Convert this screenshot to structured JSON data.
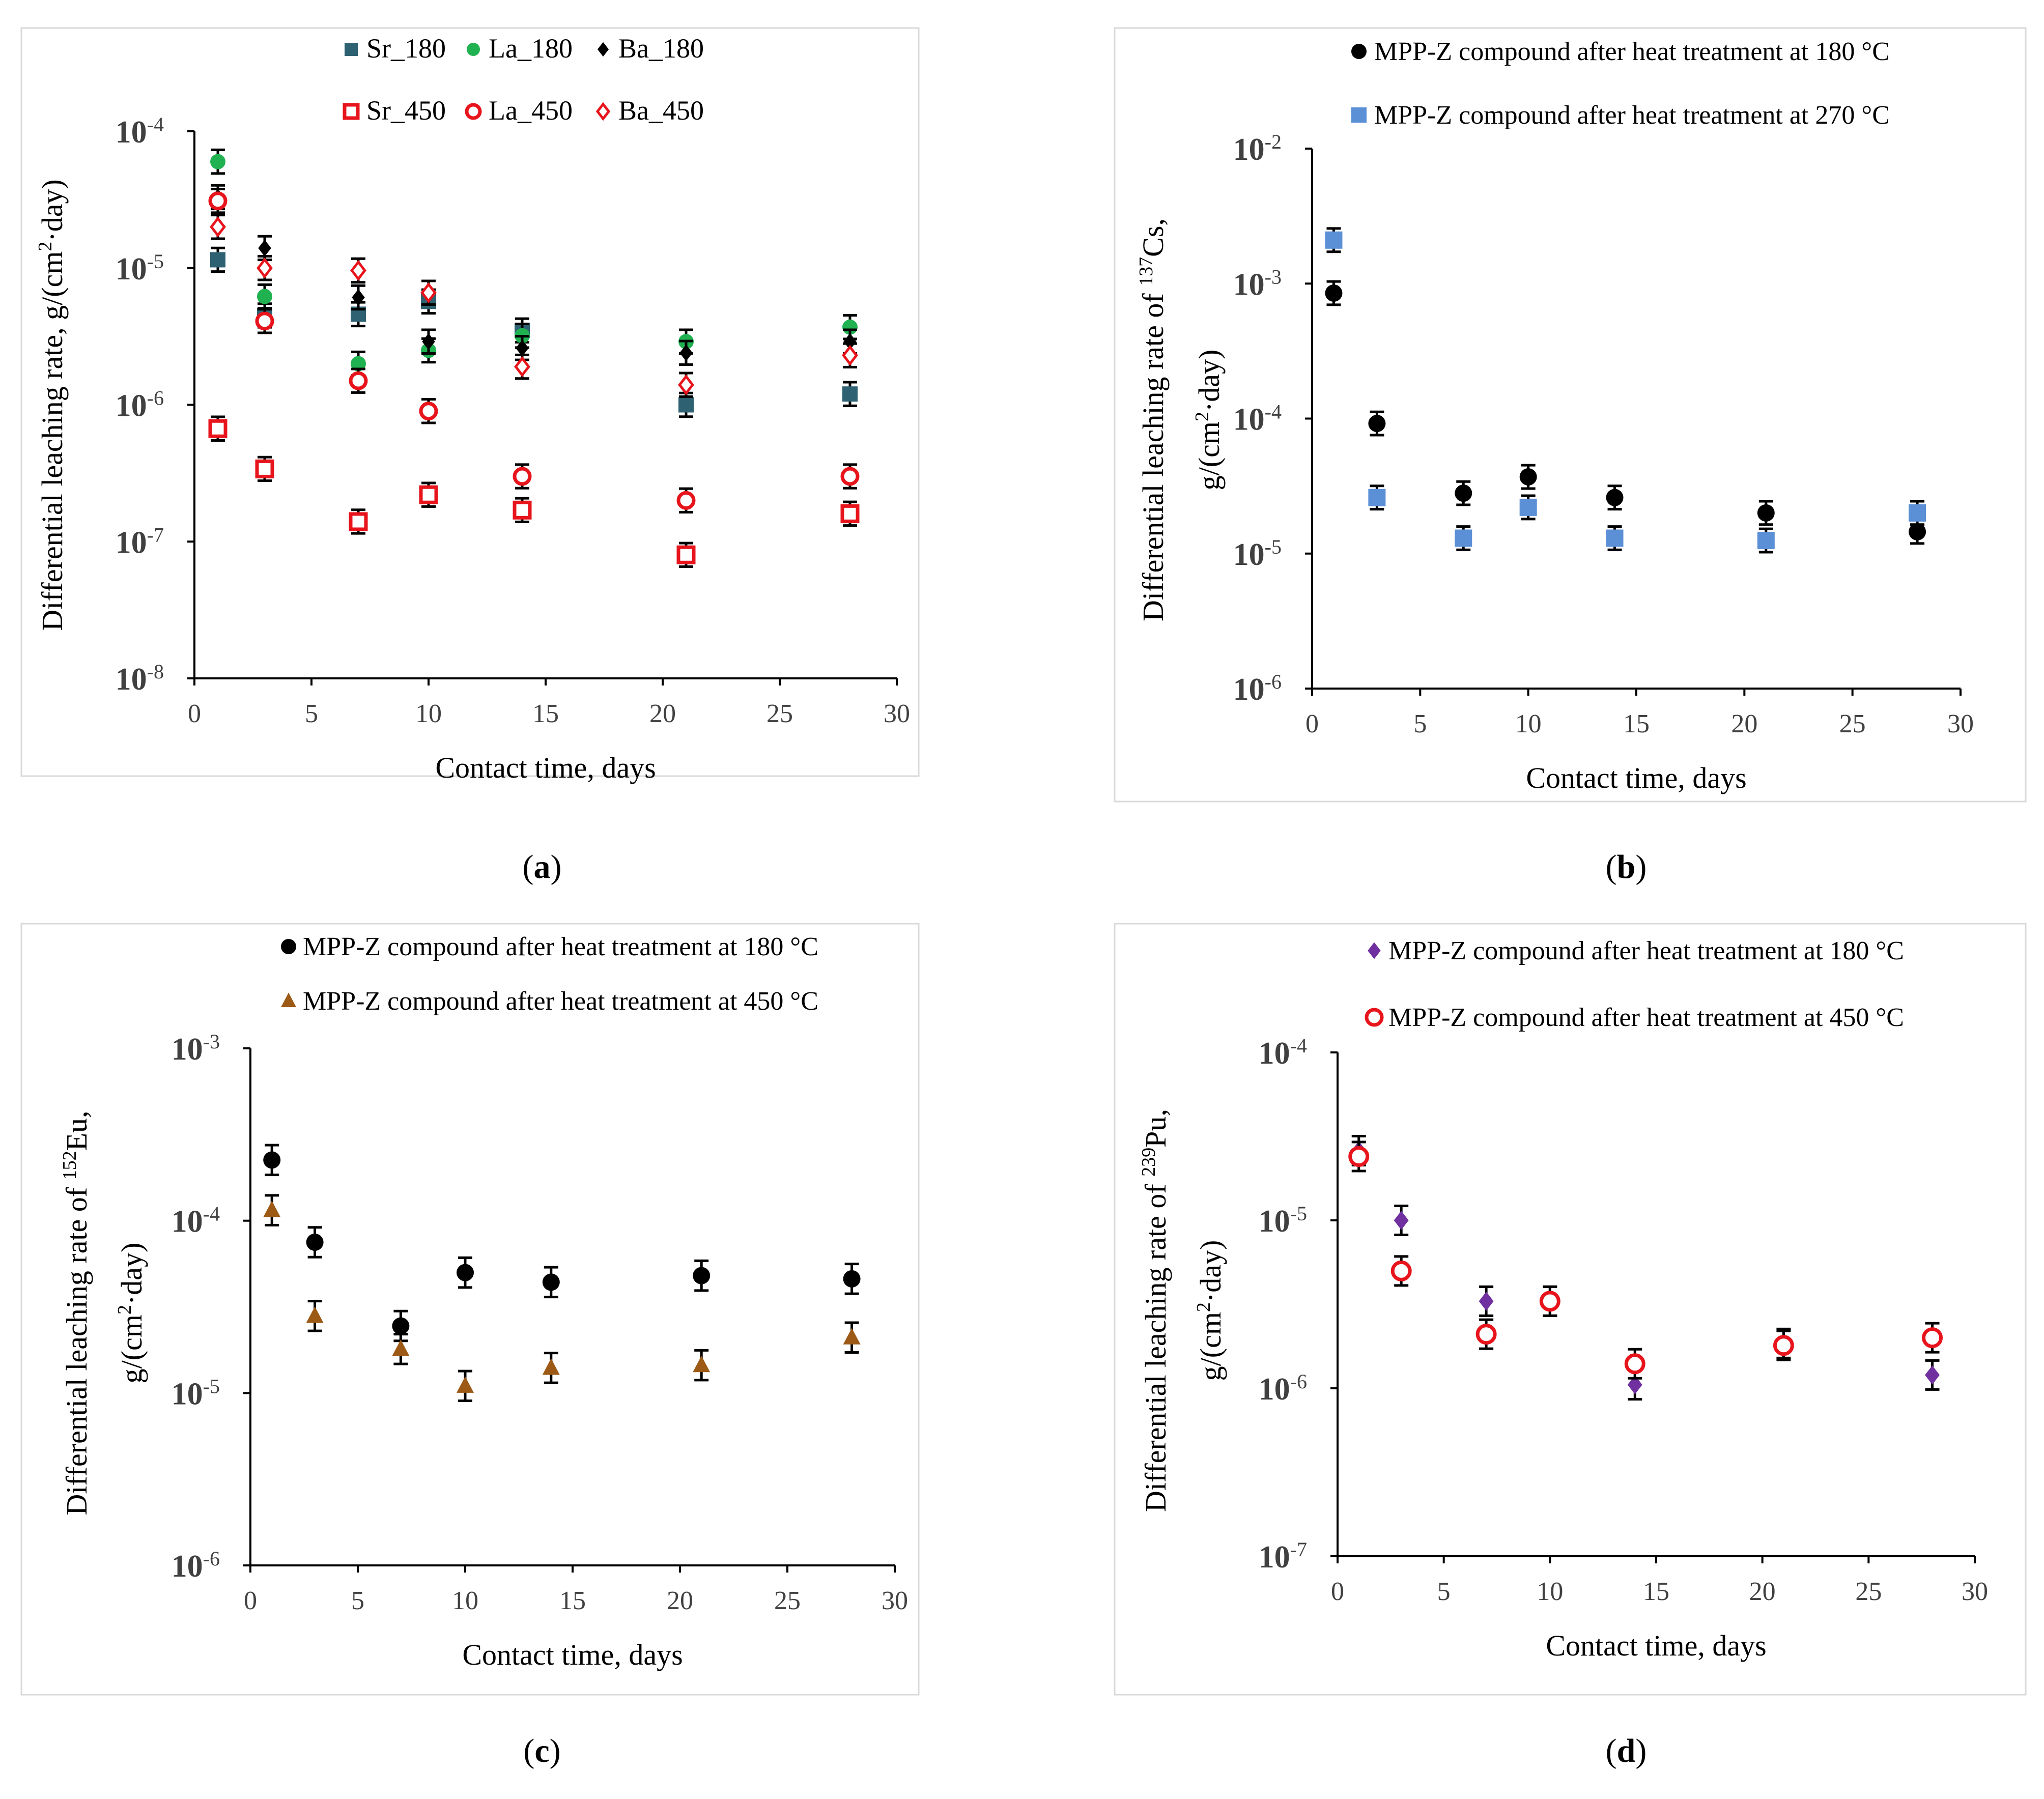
{
  "chart_data": [
    {
      "id": "a",
      "type": "scatter",
      "caption_letter": "a",
      "xlabel": "Contact time, days",
      "ylabel": "Differential leaching rate, g/(cm²·day)",
      "xlim": [
        0,
        30
      ],
      "xticks": [
        "0",
        "5",
        "10",
        "15",
        "20",
        "25",
        "30"
      ],
      "ylim_log10": [
        -8,
        -4
      ],
      "yticks": [
        {
          "base": "10",
          "exp": "-8"
        },
        {
          "base": "10",
          "exp": "-7"
        },
        {
          "base": "10",
          "exp": "-6"
        },
        {
          "base": "10",
          "exp": "-5"
        },
        {
          "base": "10",
          "exp": "-4"
        }
      ],
      "legend_position": "top",
      "series": [
        {
          "name": "Sr_180",
          "marker": "square-filled",
          "color": "#2e6272",
          "x": [
            1,
            3,
            7,
            10,
            14,
            21,
            28
          ],
          "y": [
            1.15e-05,
            4.5e-06,
            4.6e-06,
            5.7e-06,
            3.5e-06,
            1e-06,
            1.2e-06
          ]
        },
        {
          "name": "La_180",
          "marker": "circle-filled",
          "color": "#20b250",
          "x": [
            1,
            3,
            7,
            10,
            14,
            21,
            28
          ],
          "y": [
            6e-05,
            6.2e-06,
            2e-06,
            2.5e-06,
            3.2e-06,
            2.9e-06,
            3.7e-06
          ]
        },
        {
          "name": "Ba_180",
          "marker": "diamond-filled",
          "color": "#000000",
          "x": [
            1,
            3,
            7,
            10,
            14,
            21,
            28
          ],
          "y": [
            3.3e-05,
            1.4e-05,
            6.1e-06,
            2.9e-06,
            2.6e-06,
            2.4e-06,
            2.9e-06
          ]
        },
        {
          "name": "Sr_450",
          "marker": "square-open",
          "color": "#e8141c",
          "x": [
            1,
            3,
            7,
            10,
            14,
            21,
            28
          ],
          "y": [
            6.7e-07,
            3.4e-07,
            1.4e-07,
            2.2e-07,
            1.7e-07,
            8e-08,
            1.6e-07
          ]
        },
        {
          "name": "La_450",
          "marker": "circle-open",
          "color": "#e8141c",
          "x": [
            1,
            3,
            7,
            10,
            14,
            21,
            28
          ],
          "y": [
            3.1e-05,
            4.1e-06,
            1.5e-06,
            9e-07,
            3e-07,
            2e-07,
            3e-07
          ]
        },
        {
          "name": "Ba_450",
          "marker": "diamond-open",
          "color": "#e8141c",
          "x": [
            1,
            3,
            7,
            10,
            14,
            21,
            28
          ],
          "y": [
            2e-05,
            1e-05,
            9.6e-06,
            6.6e-06,
            1.9e-06,
            1.4e-06,
            2.3e-06
          ]
        }
      ]
    },
    {
      "id": "b",
      "type": "scatter",
      "caption_letter": "b",
      "xlabel": "Contact time, days",
      "ylabel_line1": "Differential leaching rate of 137Cs,",
      "ylabel_line2": "g/(cm²·day)",
      "xlim": [
        0,
        30
      ],
      "xticks": [
        "0",
        "5",
        "10",
        "15",
        "20",
        "25",
        "30"
      ],
      "ylim_log10": [
        -6,
        -2
      ],
      "yticks": [
        {
          "base": "10",
          "exp": "-6"
        },
        {
          "base": "10",
          "exp": "-5"
        },
        {
          "base": "10",
          "exp": "-4"
        },
        {
          "base": "10",
          "exp": "-3"
        },
        {
          "base": "10",
          "exp": "-2"
        }
      ],
      "legend_position": "top-right",
      "series": [
        {
          "name": "MPP-Z compound after heat treatment at 180 °C",
          "marker": "circle-filled",
          "color": "#000000",
          "x": [
            1,
            3,
            7,
            10,
            14,
            21,
            28
          ],
          "y": [
            0.00085,
            9.2e-05,
            2.8e-05,
            3.7e-05,
            2.6e-05,
            2e-05,
            1.45e-05
          ]
        },
        {
          "name": "MPP-Z compound after heat treatment at 270 °C",
          "marker": "square-filled",
          "color": "#5b8fd6",
          "x": [
            1,
            3,
            7,
            10,
            14,
            21,
            28
          ],
          "y": [
            0.0021,
            2.6e-05,
            1.3e-05,
            2.2e-05,
            1.3e-05,
            1.25e-05,
            2e-05
          ]
        }
      ]
    },
    {
      "id": "c",
      "type": "scatter",
      "caption_letter": "c",
      "xlabel": "Contact time, days",
      "ylabel_line1": "Differential leaching rate of 152Eu,",
      "ylabel_line2": "g/(cm²·day)",
      "xlim": [
        0,
        30
      ],
      "xticks": [
        "0",
        "5",
        "10",
        "15",
        "20",
        "25",
        "30"
      ],
      "ylim_log10": [
        -6,
        -3
      ],
      "yticks": [
        {
          "base": "10",
          "exp": "-6"
        },
        {
          "base": "10",
          "exp": "-5"
        },
        {
          "base": "10",
          "exp": "-4"
        },
        {
          "base": "10",
          "exp": "-3"
        }
      ],
      "legend_position": "top-right",
      "series": [
        {
          "name": "MPP-Z compound after heat treatment at 180 °C",
          "marker": "circle-filled",
          "color": "#000000",
          "x": [
            1,
            3,
            7,
            10,
            14,
            21,
            28
          ],
          "y": [
            0.000225,
            7.5e-05,
            2.45e-05,
            5e-05,
            4.4e-05,
            4.8e-05,
            4.6e-05
          ]
        },
        {
          "name": "MPP-Z compound after heat treatment at 450 °C",
          "marker": "triangle-filled",
          "color": "#9c5a16",
          "x": [
            1,
            3,
            7,
            10,
            14,
            21,
            28
          ],
          "y": [
            0.000115,
            2.8e-05,
            1.8e-05,
            1.1e-05,
            1.4e-05,
            1.45e-05,
            2.1e-05
          ]
        }
      ]
    },
    {
      "id": "d",
      "type": "scatter",
      "caption_letter": "d",
      "xlabel": "Contact time, days",
      "ylabel_line1": "Differential leaching rate of 239Pu,",
      "ylabel_line2": "g/(cm²·day)",
      "xlim": [
        0,
        30
      ],
      "xticks": [
        "0",
        "5",
        "10",
        "15",
        "20",
        "25",
        "30"
      ],
      "ylim_log10": [
        -7,
        -4
      ],
      "yticks": [
        {
          "base": "10",
          "exp": "-7"
        },
        {
          "base": "10",
          "exp": "-6"
        },
        {
          "base": "10",
          "exp": "-5"
        },
        {
          "base": "10",
          "exp": "-4"
        }
      ],
      "legend_position": "top-right",
      "series": [
        {
          "name": "MPP-Z compound after heat treatment at 180 °C",
          "marker": "diamond-filled",
          "color": "#7030a0",
          "x": [
            1,
            3,
            7,
            10,
            14,
            21,
            28
          ],
          "y": [
            2.6e-05,
            1e-05,
            3.3e-06,
            3.3e-06,
            1.05e-06,
            1.85e-06,
            1.2e-06
          ]
        },
        {
          "name": "MPP-Z compound after heat treatment at 450 °C",
          "marker": "circle-open",
          "color": "#e8141c",
          "x": [
            1,
            3,
            7,
            10,
            14,
            21,
            28
          ],
          "y": [
            2.4e-05,
            5e-06,
            2.1e-06,
            3.3e-06,
            1.4e-06,
            1.8e-06,
            2e-06
          ]
        }
      ]
    }
  ]
}
